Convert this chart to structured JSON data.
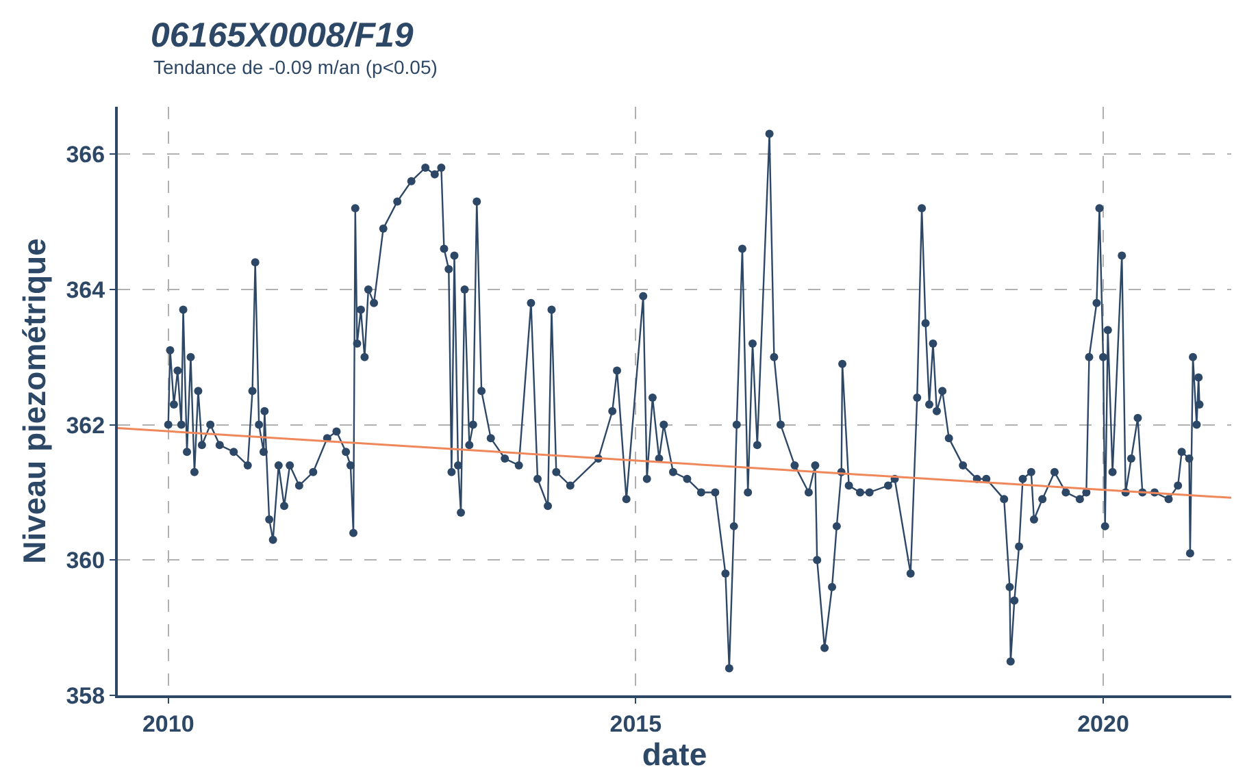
{
  "chart_data": {
    "type": "line",
    "title": "06165X0008/F19",
    "subtitle": "Tendance de -0.09 m/an (p<0.05)",
    "xlabel": "date",
    "ylabel": "Niveau piezométrique",
    "xlim": [
      2009.46,
      2021.37
    ],
    "xticks": [
      2010,
      2015,
      2020
    ],
    "ylim": [
      358,
      366.7
    ],
    "yticks": [
      358,
      360,
      362,
      364,
      366
    ],
    "grid": true,
    "line_style": "solid",
    "series": [
      {
        "color": "#2d4766",
        "marker": "circle",
        "x": [
          2010.0,
          2010.02,
          2010.06,
          2010.1,
          2010.14,
          2010.16,
          2010.2,
          2010.24,
          2010.28,
          2010.32,
          2010.36,
          2010.45,
          2010.55,
          2010.7,
          2010.85,
          2010.9,
          2010.93,
          2010.97,
          2011.02,
          2011.03,
          2011.08,
          2011.12,
          2011.18,
          2011.24,
          2011.3,
          2011.4,
          2011.55,
          2011.7,
          2011.8,
          2011.9,
          2011.95,
          2011.98,
          2012.0,
          2012.02,
          2012.06,
          2012.1,
          2012.14,
          2012.2,
          2012.3,
          2012.45,
          2012.6,
          2012.75,
          2012.85,
          2012.92,
          2012.95,
          2013.0,
          2013.03,
          2013.06,
          2013.1,
          2013.13,
          2013.17,
          2013.22,
          2013.26,
          2013.3,
          2013.35,
          2013.45,
          2013.6,
          2013.75,
          2013.88,
          2013.95,
          2014.06,
          2014.1,
          2014.15,
          2014.3,
          2014.6,
          2014.75,
          2014.8,
          2014.9,
          2015.08,
          2015.12,
          2015.18,
          2015.25,
          2015.3,
          2015.4,
          2015.55,
          2015.7,
          2015.85,
          2015.96,
          2016.0,
          2016.05,
          2016.08,
          2016.14,
          2016.2,
          2016.25,
          2016.3,
          2016.43,
          2016.48,
          2016.55,
          2016.7,
          2016.85,
          2016.92,
          2016.94,
          2017.02,
          2017.1,
          2017.15,
          2017.2,
          2017.21,
          2017.28,
          2017.4,
          2017.5,
          2017.7,
          2017.77,
          2017.94,
          2018.01,
          2018.06,
          2018.1,
          2018.14,
          2018.18,
          2018.22,
          2018.28,
          2018.35,
          2018.5,
          2018.65,
          2018.75,
          2018.94,
          2019.0,
          2019.01,
          2019.05,
          2019.1,
          2019.14,
          2019.23,
          2019.26,
          2019.35,
          2019.48,
          2019.6,
          2019.75,
          2019.82,
          2019.85,
          2019.93,
          2019.96,
          2020.0,
          2020.02,
          2020.05,
          2020.1,
          2020.2,
          2020.24,
          2020.3,
          2020.37,
          2020.42,
          2020.55,
          2020.7,
          2020.8,
          2020.84,
          2020.92,
          2020.93,
          2020.96,
          2021.0,
          2021.02,
          2021.03
        ],
        "values": [
          362.0,
          363.1,
          362.3,
          362.8,
          362.0,
          363.7,
          361.6,
          363.0,
          361.3,
          362.5,
          361.7,
          362.0,
          361.7,
          361.6,
          361.4,
          362.5,
          364.4,
          362.0,
          361.6,
          362.2,
          360.6,
          360.3,
          361.4,
          360.8,
          361.4,
          361.1,
          361.3,
          361.8,
          361.9,
          361.6,
          361.4,
          360.4,
          365.2,
          363.2,
          363.7,
          363.0,
          364.0,
          363.8,
          364.9,
          365.3,
          365.6,
          365.8,
          365.7,
          365.8,
          364.6,
          364.3,
          361.3,
          364.5,
          361.4,
          360.7,
          364.0,
          361.7,
          362.0,
          365.3,
          362.5,
          361.8,
          361.5,
          361.4,
          363.8,
          361.2,
          360.8,
          363.7,
          361.3,
          361.1,
          361.5,
          362.2,
          362.8,
          360.9,
          363.9,
          361.2,
          362.4,
          361.5,
          362.0,
          361.3,
          361.2,
          361.0,
          361.0,
          359.8,
          358.4,
          360.5,
          362.0,
          364.6,
          361.0,
          363.2,
          361.7,
          366.3,
          363.0,
          362.0,
          361.4,
          361.0,
          361.4,
          360.0,
          358.7,
          359.6,
          360.5,
          361.3,
          362.9,
          361.1,
          361.0,
          361.0,
          361.1,
          361.2,
          359.8,
          362.4,
          365.2,
          363.5,
          362.3,
          363.2,
          362.2,
          362.5,
          361.8,
          361.4,
          361.2,
          361.2,
          360.9,
          359.6,
          358.5,
          359.4,
          360.2,
          361.2,
          361.3,
          360.6,
          360.9,
          361.3,
          361.0,
          360.9,
          361.0,
          363.0,
          363.8,
          365.2,
          363.0,
          360.5,
          363.4,
          361.3,
          364.5,
          361.0,
          361.5,
          362.1,
          361.0,
          361.0,
          360.9,
          361.1,
          361.6,
          361.5,
          360.1,
          363.0,
          362.0,
          362.7,
          362.3
        ]
      },
      {
        "type": "line",
        "color": "#f0875a",
        "marker": "none",
        "x": [
          2009.46,
          2021.37
        ],
        "values": [
          361.95,
          360.92
        ]
      }
    ]
  }
}
